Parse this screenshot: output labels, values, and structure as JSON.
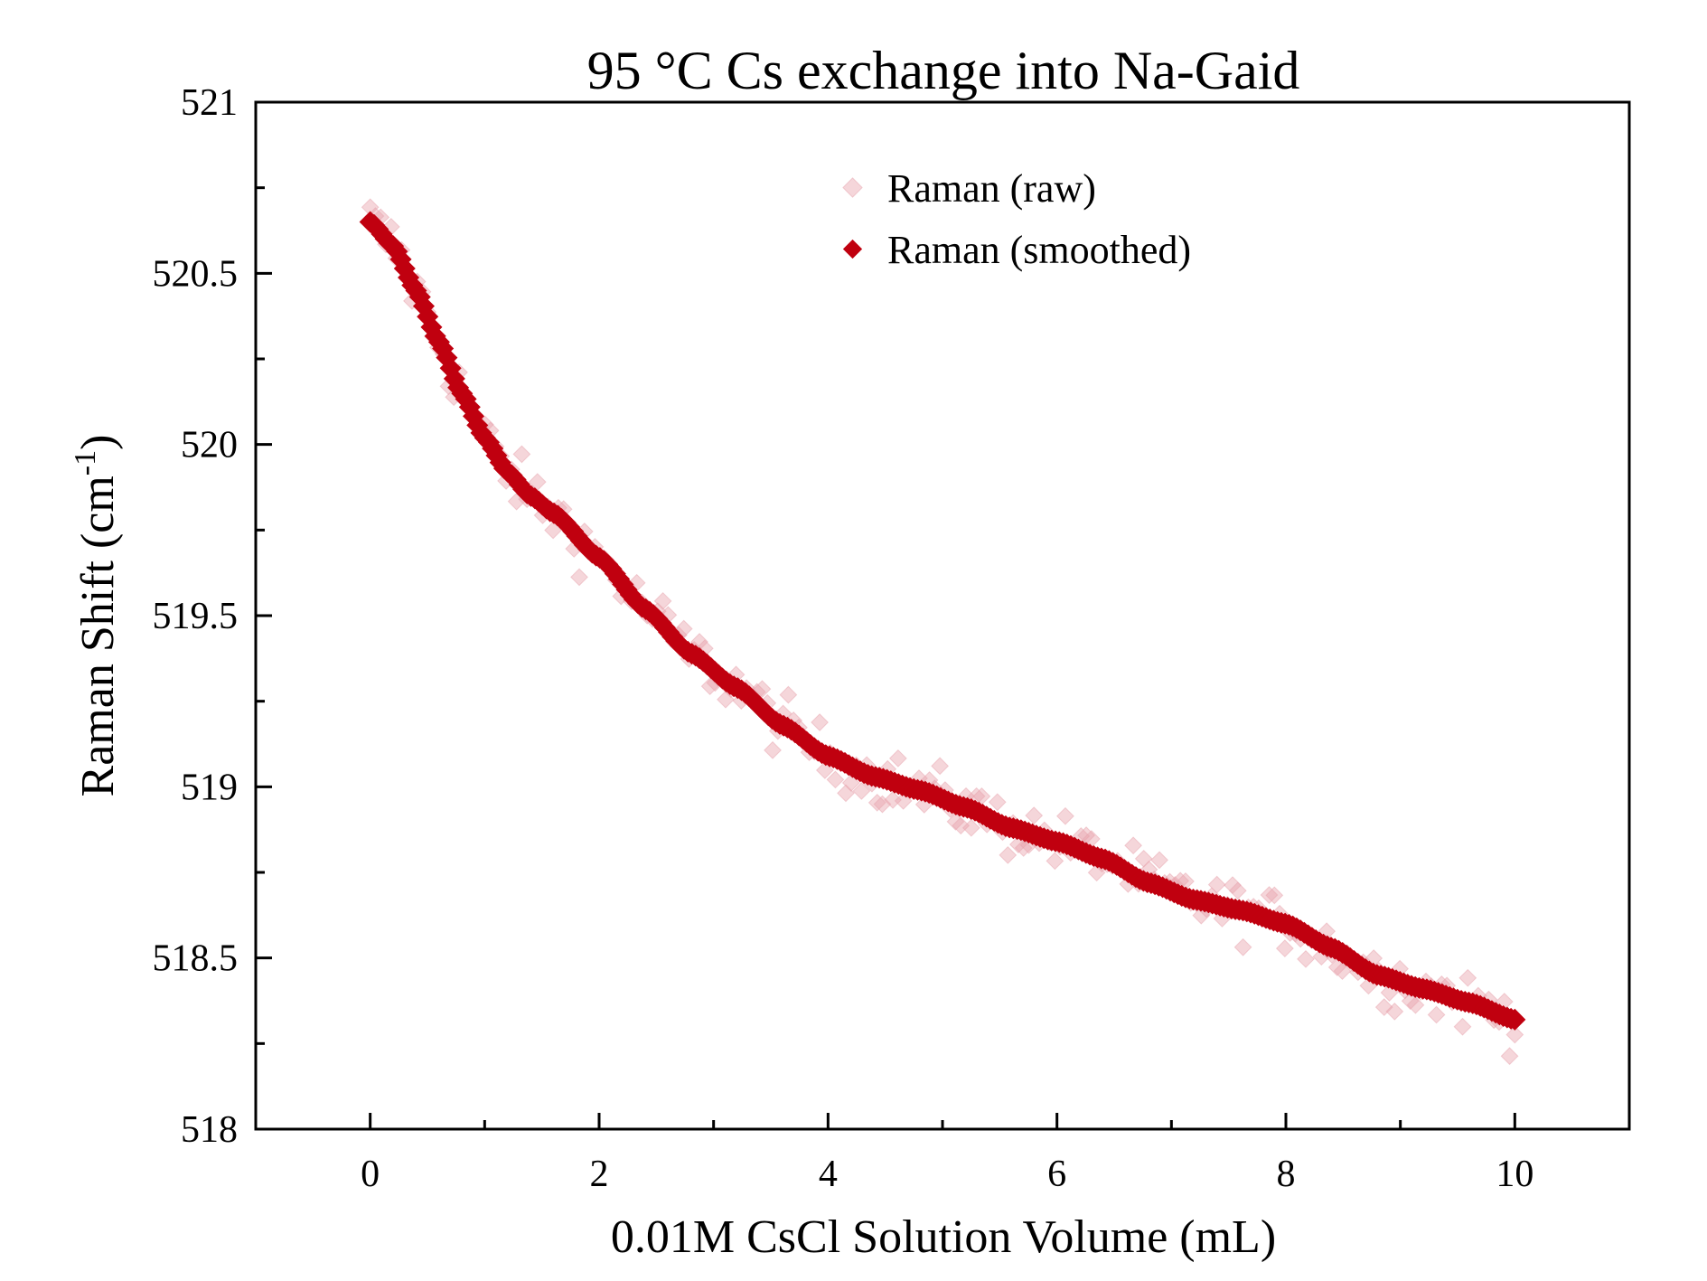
{
  "chart_data": {
    "type": "scatter",
    "title": "95 °C Cs exchange into Na-Gaid",
    "xlabel": "0.01M CsCl Solution Volume (mL)",
    "ylabel_main": "Raman Shift (cm",
    "ylabel_sup": "-1",
    "ylabel_end": ")",
    "xlim": [
      -1,
      11
    ],
    "ylim": [
      518,
      521
    ],
    "x_major_ticks": [
      0,
      2,
      4,
      6,
      8,
      10
    ],
    "x_minor_ticks": [
      1,
      3,
      5,
      7,
      9
    ],
    "y_major_ticks": [
      518,
      518.5,
      519,
      519.5,
      520,
      520.5,
      521
    ],
    "y_minor_ticks": [
      518.25,
      518.75,
      519.25,
      519.75,
      520.25,
      520.75
    ],
    "x_tick_labels": [
      "0",
      "2",
      "4",
      "6",
      "8",
      "10"
    ],
    "y_tick_labels": [
      "518",
      "518.5",
      "519",
      "519.5",
      "520",
      "520.5",
      "521"
    ],
    "grid": false,
    "legend_position": "top-center",
    "series": [
      {
        "name": "Raman (raw)",
        "color": "#e8a3ad",
        "marker": "diamond",
        "opacity": 0.45,
        "x_range": [
          0,
          10
        ],
        "n_points": 220,
        "noise": 0.06
      },
      {
        "name": "Raman (smoothed)",
        "color": "#c0000f",
        "marker": "diamond",
        "x_range": [
          0,
          10
        ],
        "n_points": 300,
        "x": [
          0,
          0.2,
          0.4,
          0.6,
          0.8,
          1.0,
          1.2,
          1.4,
          1.6,
          2.0,
          2.4,
          2.8,
          3.2,
          3.6,
          4.0,
          4.4,
          4.8,
          5.2,
          5.6,
          6.0,
          6.4,
          6.8,
          7.2,
          7.6,
          8.0,
          8.4,
          8.8,
          9.2,
          9.6,
          10.0
        ],
        "y": [
          520.65,
          520.58,
          520.45,
          520.3,
          520.15,
          520.02,
          519.92,
          519.85,
          519.8,
          519.67,
          519.52,
          519.39,
          519.29,
          519.18,
          519.09,
          519.03,
          518.99,
          518.94,
          518.88,
          518.84,
          518.79,
          518.72,
          518.67,
          518.64,
          518.6,
          518.53,
          518.45,
          518.41,
          518.37,
          518.32
        ]
      }
    ]
  }
}
